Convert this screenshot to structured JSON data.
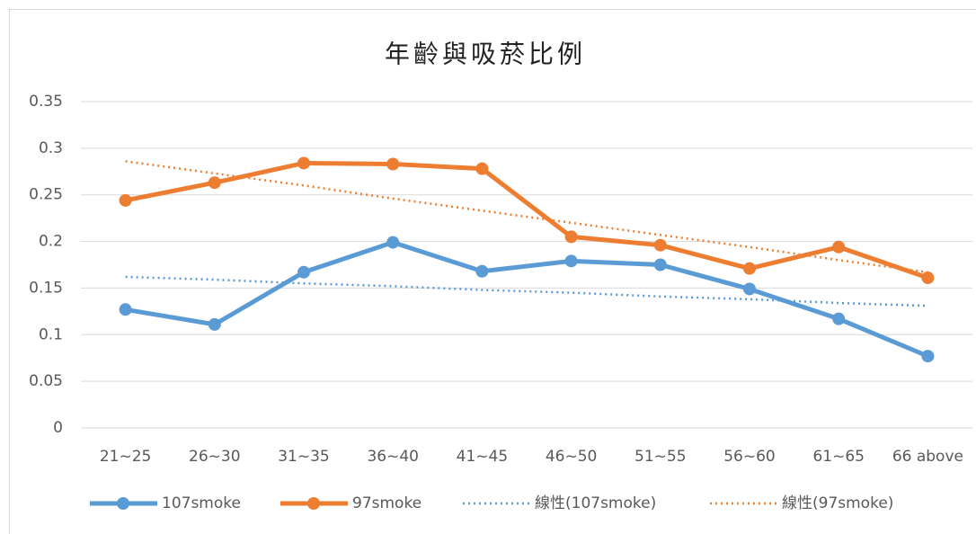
{
  "chart_data": {
    "type": "line",
    "title": "年齡與吸菸比例",
    "categories": [
      "21~25",
      "26~30",
      "31~35",
      "36~40",
      "41~45",
      "46~50",
      "51~55",
      "56~60",
      "61~65",
      "66 above"
    ],
    "series": [
      {
        "name": "107smoke",
        "color": "#5b9bd5",
        "style": "solid",
        "markers": true,
        "values": [
          0.127,
          0.111,
          0.167,
          0.199,
          0.168,
          0.179,
          0.175,
          0.149,
          0.117,
          0.077
        ]
      },
      {
        "name": "97smoke",
        "color": "#ed7d31",
        "style": "solid",
        "markers": true,
        "values": [
          0.244,
          0.263,
          0.284,
          0.283,
          0.278,
          0.205,
          0.196,
          0.171,
          0.194,
          0.161
        ]
      },
      {
        "name": "線性(107smoke)",
        "color": "#5b9bd5",
        "style": "dotted",
        "markers": false,
        "values": [
          0.162,
          0.159,
          0.155,
          0.152,
          0.148,
          0.145,
          0.141,
          0.138,
          0.134,
          0.131
        ]
      },
      {
        "name": "線性(97smoke)",
        "color": "#ed7d31",
        "style": "dotted",
        "markers": false,
        "values": [
          0.286,
          0.273,
          0.26,
          0.246,
          0.233,
          0.22,
          0.207,
          0.194,
          0.18,
          0.167
        ]
      }
    ],
    "ylim": [
      0,
      0.35
    ],
    "yticks": [
      0,
      0.05,
      0.1,
      0.15,
      0.2,
      0.25,
      0.3,
      0.35
    ],
    "grid": true,
    "legend": "bottom"
  }
}
